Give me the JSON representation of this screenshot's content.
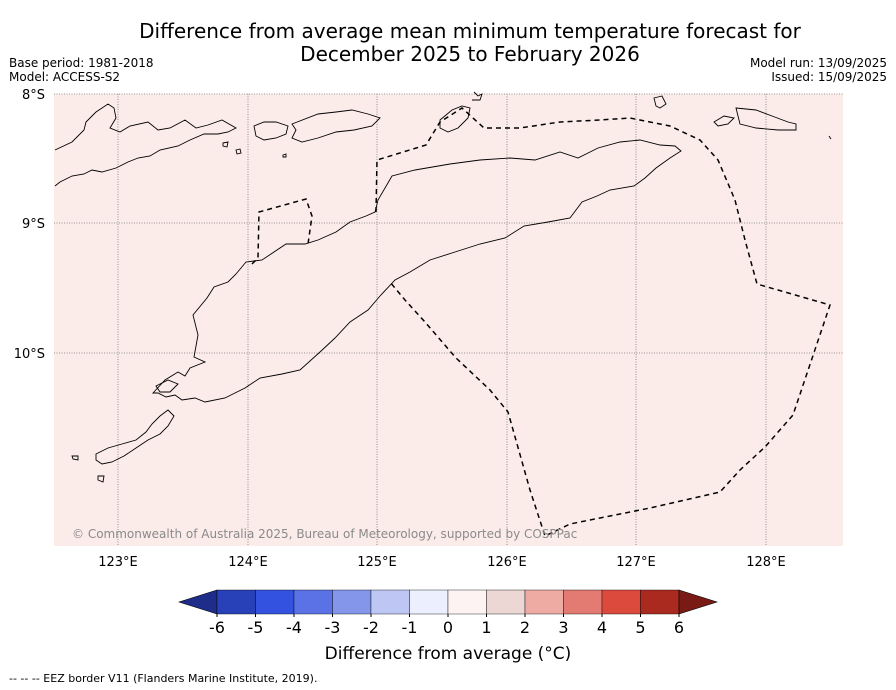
{
  "title": {
    "line1": "Difference from average mean minimum temperature forecast for",
    "line2": "December 2025 to February 2026"
  },
  "meta_left": {
    "base_period": "Base period: 1981-2018",
    "model": "Model: ACCESS-S2"
  },
  "meta_right": {
    "model_run": "Model run: 13/09/2025",
    "issued": "Issued: 15/09/2025"
  },
  "map": {
    "background_color": "#fbecea",
    "lat_labels": [
      "8°S",
      "9°S",
      "10°S"
    ],
    "lon_labels": [
      "123°E",
      "124°E",
      "125°E",
      "126°E",
      "127°E",
      "128°E"
    ],
    "copyright": "© Commonwealth of Australia 2025, Bureau of Meteorology, supported by COSPPac"
  },
  "colorbar": {
    "ticks": [
      "-6",
      "-5",
      "-4",
      "-3",
      "-2",
      "-1",
      "0",
      "1",
      "2",
      "3",
      "4",
      "5",
      "6"
    ],
    "colors": [
      "#1f2d8a",
      "#2840b8",
      "#3352e0",
      "#5a72e6",
      "#8396ea",
      "#bec7f3",
      "#eceffd",
      "#fdf3f2",
      "#ecd7d4",
      "#eeaba4",
      "#e47b72",
      "#dc4a3e",
      "#ab2a20",
      "#7a1a14"
    ],
    "label": "Difference from average (°C)"
  },
  "footnote": "-- -- -- EEZ border V11 (Flanders Marine Institute, 2019)."
}
